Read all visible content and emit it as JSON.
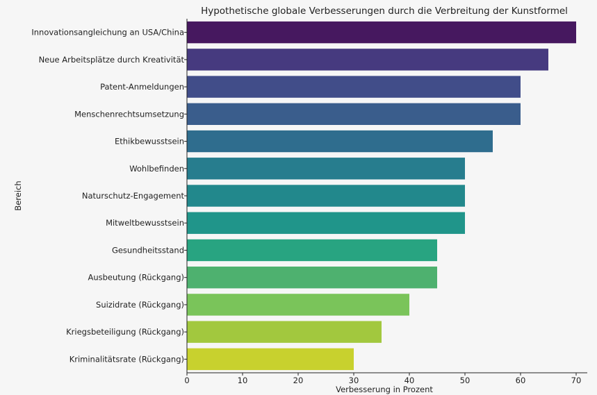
{
  "chart_data": {
    "type": "bar",
    "orientation": "horizontal",
    "title": "Hypothetische globale Verbesserungen durch die Verbreitung der Kunstformel",
    "xlabel": "Verbesserung in Prozent",
    "ylabel": "Bereich",
    "xlim": [
      0,
      72
    ],
    "xticks": [
      0,
      10,
      20,
      30,
      40,
      50,
      60,
      70
    ],
    "grid": false,
    "categories": [
      "Innovationsangleichung an USA/China",
      "Neue Arbeitsplätze durch Kreativität",
      "Patent-Anmeldungen",
      "Menschenrechtsumsetzung",
      "Ethikbewusstsein",
      "Wohlbefinden",
      "Naturschutz-Engagement",
      "Mitweltbewusstsein",
      "Gesundheitsstand",
      "Ausbeutung (Rückgang)",
      "Suizidrate (Rückgang)",
      "Kriegsbeteiligung (Rückgang)",
      "Kriminalitätsrate (Rückgang)"
    ],
    "values": [
      70,
      65,
      60,
      60,
      55,
      50,
      50,
      50,
      45,
      45,
      40,
      35,
      30
    ],
    "colors": [
      "#46185f",
      "#463a7f",
      "#414d89",
      "#3a5d8c",
      "#2f6d8e",
      "#277d8e",
      "#22888c",
      "#20958a",
      "#28a481",
      "#4eb16f",
      "#7ac45a",
      "#a2c83e",
      "#c8d12e"
    ]
  }
}
